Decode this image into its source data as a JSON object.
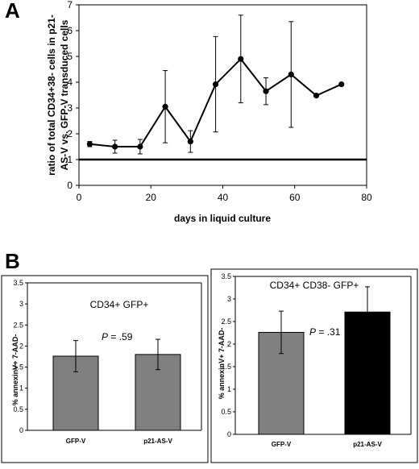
{
  "panels": {
    "a_label": "A",
    "b_label": "B"
  },
  "chart_data": [
    {
      "type": "line",
      "xlabel": "days in liquid culture",
      "ylabel_lines": [
        "ratio of total CD34+38- cells in p21-",
        "AS-V vs. GFP-V transduced cells"
      ],
      "xlim": [
        0,
        80
      ],
      "ylim": [
        0,
        7
      ],
      "xticks": [
        0,
        20,
        40,
        60,
        80
      ],
      "yticks": [
        0,
        1,
        2,
        3,
        4,
        5,
        6,
        7
      ],
      "reference_line_y": 1,
      "series": [
        {
          "x": [
            3,
            10,
            17,
            24,
            31,
            38,
            45,
            52,
            59,
            66,
            73
          ],
          "y": [
            1.6,
            1.5,
            1.5,
            3.05,
            1.7,
            3.92,
            4.9,
            3.65,
            4.3,
            3.48,
            3.92
          ],
          "err": [
            0.1,
            0.25,
            0.28,
            1.4,
            0.42,
            1.85,
            1.7,
            0.52,
            2.05,
            null,
            null
          ]
        }
      ]
    },
    {
      "type": "bar",
      "title": "CD34+ GFP+",
      "ylabel": "% annexinV+ 7-AAD-",
      "categories": [
        "GFP-V",
        "p21-AS-V"
      ],
      "values": [
        1.76,
        1.8
      ],
      "errors": [
        0.37,
        0.36
      ],
      "colors": [
        "#808080",
        "#808080"
      ],
      "ylim": [
        0,
        3.5
      ],
      "yticks": [
        "0",
        "0.5",
        "1",
        "1.5",
        "2",
        "2.5",
        "3",
        "3.5"
      ],
      "p_symbol": "P",
      "p_value": " = .59"
    },
    {
      "type": "bar",
      "title": "CD34+ CD38- GFP+",
      "ylabel": "% annexinV+ 7-AAD-",
      "categories": [
        "GFP-V",
        "p21-AS-V"
      ],
      "values": [
        2.26,
        2.71
      ],
      "errors": [
        0.47,
        0.56
      ],
      "colors": [
        "#808080",
        "#000000"
      ],
      "ylim": [
        0,
        3.5
      ],
      "yticks": [
        "0",
        "0.5",
        "1",
        "1.5",
        "2",
        "2.5",
        "3",
        "3.5"
      ],
      "p_symbol": "P",
      "p_value": " = .31"
    }
  ]
}
